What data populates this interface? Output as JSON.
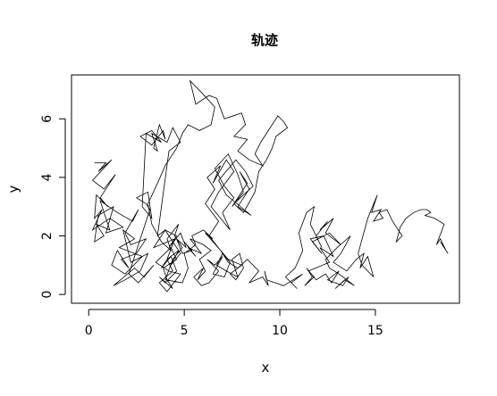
{
  "chart_data": {
    "type": "line",
    "title": "轨迹",
    "xlabel": "x",
    "ylabel": "y",
    "xlim": [
      -0.9,
      19.4
    ],
    "ylim": [
      -0.3,
      7.5
    ],
    "xticks": [
      0,
      5,
      10,
      15
    ],
    "yticks": [
      0,
      2,
      4,
      6
    ],
    "grid": false,
    "series": [
      {
        "color": "#000000",
        "x": [
          0.3,
          0.9,
          0.5,
          1.2,
          0.2,
          0.8,
          1.4,
          0.6,
          1.0,
          0.4,
          0.3,
          0.7,
          0.2,
          1.1,
          1.8,
          0.9,
          1.3,
          0.5,
          0.3,
          0.8,
          0.4,
          1.1,
          0.6,
          1.5,
          2.3,
          2.6,
          1.9,
          2.2,
          3.0,
          2.5,
          1.7,
          2.1,
          1.5,
          1.2,
          1.9,
          2.8,
          1.6,
          2.4,
          1.8,
          2.2,
          3.1,
          2.7,
          1.9,
          1.3,
          2.4,
          2.9,
          3.4,
          2.6,
          2.1,
          3.2,
          3.0,
          2.5,
          3.1,
          3.3,
          2.8,
          3.0,
          3.8,
          3.3,
          2.7,
          3.3,
          3.9,
          4.0,
          3.7,
          3.4,
          3.6,
          3.3,
          4.1,
          4.4,
          4.8,
          4.2,
          3.6,
          4.0,
          3.4,
          4.5,
          4.1,
          3.8,
          4.3,
          4.6,
          4.0,
          3.7,
          4.4,
          4.1,
          3.9,
          4.6,
          4.3,
          3.5,
          4.2,
          4.8,
          4.1,
          3.7,
          4.4,
          4.1,
          4.7,
          4.3,
          4.8,
          4.4,
          4.0,
          4.6,
          4.2,
          4.8,
          5.1,
          4.6,
          4.9,
          5.4,
          5.0,
          5.6,
          5.2,
          5.9,
          5.3,
          6.0,
          6.4,
          5.8,
          6.1,
          5.7,
          6.0,
          5.5,
          5.9,
          6.3,
          6.8,
          6.2,
          6.6,
          7.0,
          6.5,
          7.1,
          7.4,
          7.0,
          6.7,
          7.2,
          7.8,
          7.5,
          7.9,
          8.1,
          7.7,
          7.4,
          8.0,
          7.3,
          6.9,
          6.3,
          6.8,
          6.1,
          6.6,
          6.2,
          6.9,
          6.5,
          7.2,
          7.6,
          6.8,
          6.4,
          6.9,
          7.4,
          7.0,
          7.6,
          7.1,
          6.6,
          7.3,
          7.8,
          8.1,
          7.5,
          8.3,
          7.9,
          8.4,
          7.8,
          8.5,
          7.2,
          6.8,
          7.7,
          8.2,
          8.6,
          7.6,
          8.1,
          8.7,
          8.9,
          9.3,
          9.6,
          9.8,
          10.4,
          10.2,
          9.9,
          9.4,
          9.0,
          8.7,
          9.1,
          8.4,
          7.8,
          8.3,
          7.6,
          8.2,
          8.0,
          7.1,
          6.7,
          6.3,
          5.6,
          5.3,
          5.9,
          6.6,
          6.4,
          5.8,
          5.2,
          4.9,
          4.6,
          4.0,
          3.6,
          3.1,
          3.3,
          3.8,
          4.3,
          4.1,
          4.7,
          4.5,
          4.9,
          4.4,
          4.0,
          4.9,
          5.2,
          5.0,
          5.6,
          5.4,
          6.0,
          6.5,
          6.1,
          6.9,
          7.3,
          7.8,
          8.3,
          8.9,
          8.4,
          9.1,
          9.4,
          9.2,
          9.3,
          10.2,
          10.7,
          11.2,
          10.6,
          10.9,
          10.3,
          10.8,
          11.2,
          11.0,
          11.4,
          11.8,
          11.6,
          12.2,
          11.9,
          12.5,
          12.1,
          12.8,
          12.4,
          13.2,
          12.6,
          11.7,
          12.2,
          11.6,
          12.3,
          12.8,
          12.1,
          12.6,
          11.5,
          11.8,
          11.3,
          11.7,
          11.4,
          11.9,
          12.4,
          12.7,
          13.1,
          12.5,
          13.3,
          13.6,
          12.9,
          13.4,
          13.9,
          13.1,
          12.6,
          12.4,
          13.0,
          13.7,
          13.2,
          12.8,
          13.5,
          14.0,
          14.4,
          14.2,
          14.6,
          14.9,
          14.3,
          14.1,
          14.6,
          15.1,
          14.8,
          15.3,
          14.9,
          15.4,
          15.2,
          15.6,
          15.9,
          16.4,
          16.1,
          16.3,
          16.6,
          17.0,
          17.4,
          17.7,
          17.9,
          17.6,
          18.1,
          18.6,
          18.2,
          18.4,
          18.7,
          18.4,
          18.8,
          18.5
        ],
        "y": [
          4.5,
          4.5,
          4.2,
          4.6,
          3.9,
          3.6,
          4.1,
          3.3,
          3.0,
          3.4,
          2.6,
          2.9,
          2.2,
          2.6,
          2.3,
          2.1,
          3.0,
          2.7,
          1.8,
          2.0,
          2.4,
          2.2,
          3.2,
          2.8,
          2.5,
          2.9,
          2.1,
          1.7,
          1.9,
          1.4,
          1.2,
          0.9,
          1.5,
          1.0,
          0.7,
          1.3,
          1.6,
          1.9,
          2.2,
          1.1,
          1.4,
          0.8,
          0.5,
          0.3,
          0.9,
          0.6,
          1.0,
          0.4,
          0.7,
          2.9,
          3.1,
          3.3,
          3.5,
          2.6,
          3.0,
          5.5,
          5.2,
          5.6,
          5.4,
          5.1,
          5.6,
          5.3,
          5.8,
          5.0,
          4.9,
          5.5,
          5.2,
          5.7,
          5.2,
          4.9,
          2.0,
          2.2,
          1.6,
          1.9,
          1.2,
          0.9,
          1.3,
          0.8,
          0.4,
          0.6,
          0.2,
          0.5,
          0.9,
          1.2,
          1.6,
          1.1,
          0.8,
          0.7,
          0.1,
          0.4,
          0.8,
          1.2,
          1.5,
          1.0,
          1.4,
          1.8,
          2.2,
          2.0,
          1.6,
          2.1,
          1.6,
          1.9,
          1.4,
          1.5,
          1.8,
          1.3,
          1.6,
          1.4,
          1.9,
          1.7,
          1.5,
          1.2,
          0.8,
          0.5,
          0.9,
          0.6,
          0.3,
          0.4,
          0.8,
          1.2,
          1.0,
          1.3,
          0.7,
          0.6,
          1.1,
          1.4,
          1.0,
          0.8,
          0.6,
          1.2,
          1.4,
          0.9,
          0.5,
          0.7,
          1.0,
          1.2,
          1.5,
          2.0,
          2.5,
          3.1,
          3.6,
          4.0,
          4.4,
          3.8,
          4.6,
          4.2,
          3.5,
          3.0,
          2.6,
          2.2,
          2.8,
          3.3,
          3.7,
          4.3,
          4.8,
          4.1,
          3.5,
          3.0,
          3.8,
          4.2,
          3.6,
          3.0,
          2.7,
          3.4,
          3.9,
          4.6,
          4.2,
          3.7,
          3.1,
          2.8,
          3.5,
          4.2,
          4.6,
          5.0,
          5.4,
          5.7,
          5.9,
          6.1,
          5.6,
          5.2,
          4.8,
          4.4,
          4.6,
          4.9,
          5.3,
          5.4,
          5.8,
          6.2,
          6.0,
          6.7,
          6.8,
          6.5,
          7.3,
          6.9,
          6.4,
          5.8,
          5.6,
          5.8,
          5.5,
          5.0,
          4.4,
          3.8,
          3.1,
          2.4,
          1.8,
          1.5,
          1.9,
          2.4,
          2.0,
          1.6,
          1.2,
          0.5,
          0.4,
          0.9,
          1.4,
          1.7,
          2.0,
          2.2,
          1.9,
          2.1,
          1.5,
          1.1,
          0.9,
          1.2,
          0.8,
          0.4,
          0.6,
          0.3,
          0.8,
          0.5,
          0.3,
          0.5,
          0.7,
          0.4,
          0.2,
          0.6,
          0.9,
          1.5,
          2.1,
          2.8,
          3.0,
          2.4,
          1.6,
          2.0,
          2.5,
          2.2,
          2.6,
          2.1,
          1.7,
          2.1,
          1.8,
          1.4,
          1.9,
          2.0,
          1.3,
          1.6,
          1.1,
          0.8,
          0.6,
          0.3,
          0.6,
          0.9,
          0.5,
          0.7,
          0.4,
          0.8,
          0.5,
          0.3,
          0.6,
          0.2,
          0.5,
          0.3,
          0.7,
          0.9,
          1.2,
          1.6,
          2.0,
          1.4,
          1.1,
          0.8,
          1.2,
          1.4,
          0.9,
          1.3,
          0.6,
          1.0,
          1.4,
          2.6,
          3.4,
          2.8,
          2.9,
          2.5,
          2.6,
          2.8,
          2.9,
          2.5,
          2.0,
          1.8,
          2.3,
          2.6,
          2.8,
          2.9,
          2.9,
          2.8,
          2.7,
          2.6,
          2.4,
          1.7,
          1.9,
          1.5,
          1.8,
          1.4,
          1.7
        ]
      }
    ]
  }
}
